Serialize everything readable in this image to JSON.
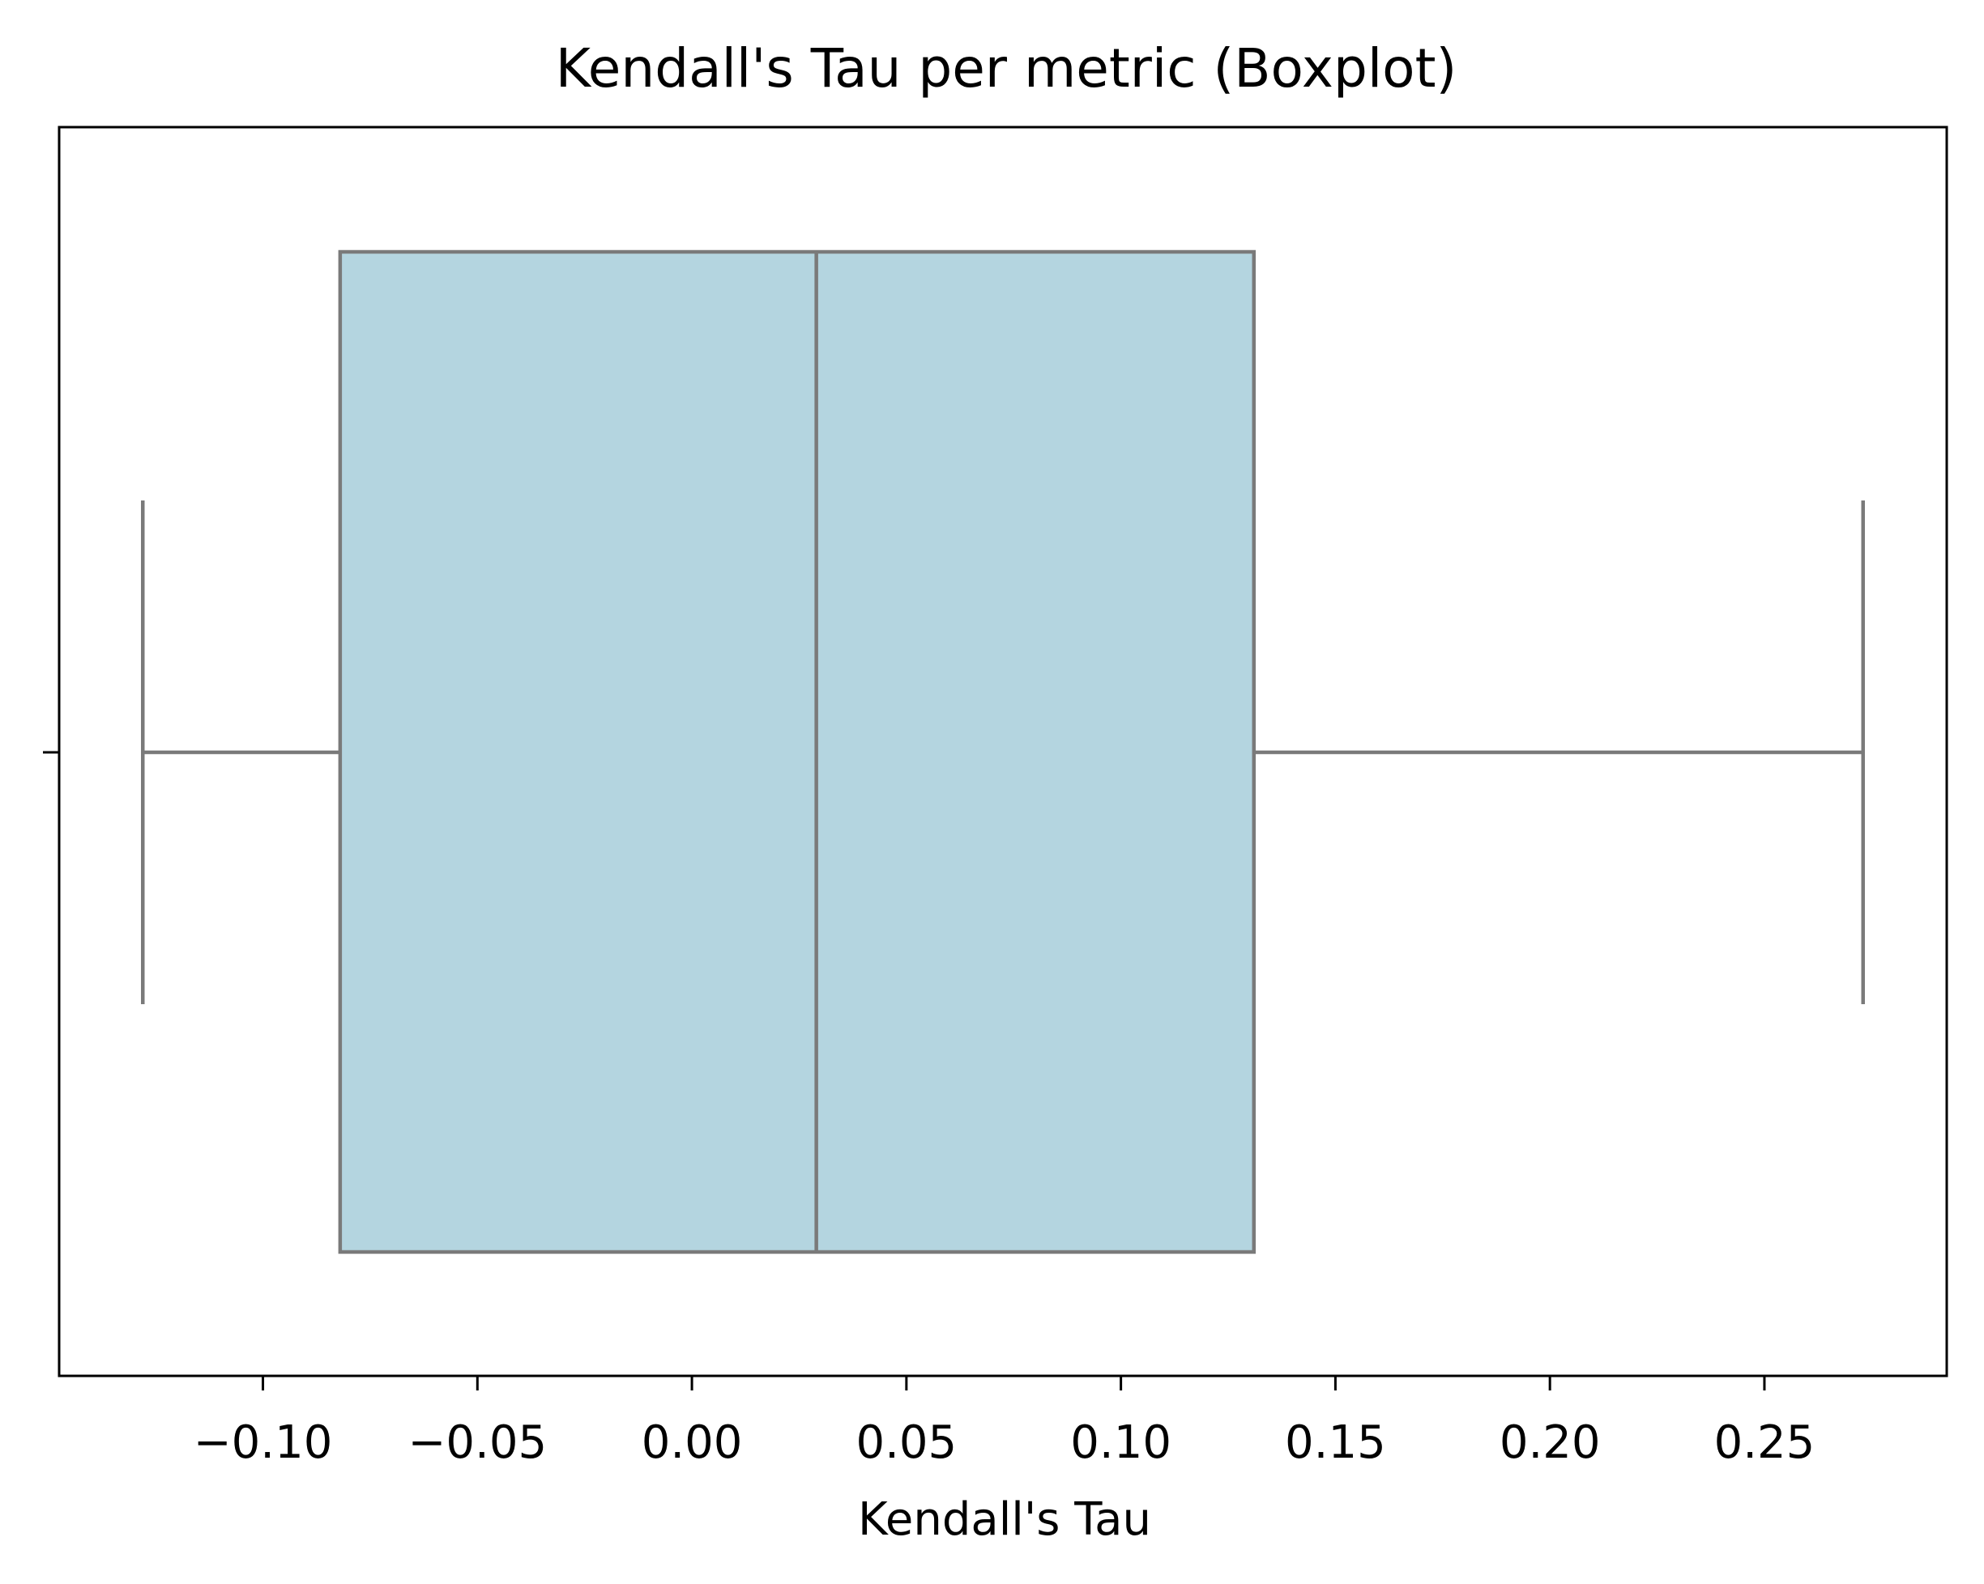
{
  "chart_data": {
    "type": "boxplot",
    "orientation": "horizontal",
    "title": "Kendall's Tau per metric (Boxplot)",
    "xlabel": "Kendall's Tau",
    "ylabel": "",
    "xlim": [
      -0.1475,
      0.2925
    ],
    "xticks": [
      -0.1,
      -0.05,
      0.0,
      0.05,
      0.1,
      0.15,
      0.2,
      0.25
    ],
    "xtick_labels": [
      "−0.10",
      "−0.05",
      "0.00",
      "0.05",
      "0.10",
      "0.15",
      "0.20",
      "0.25"
    ],
    "grid": false,
    "box": {
      "whisker_low": -0.128,
      "q1": -0.082,
      "median": 0.029,
      "q3": 0.131,
      "whisker_high": 0.273
    },
    "colors": {
      "box_fill": "#b4d5e0",
      "box_edge": "#7a7a7a",
      "axes": "#000000"
    }
  }
}
